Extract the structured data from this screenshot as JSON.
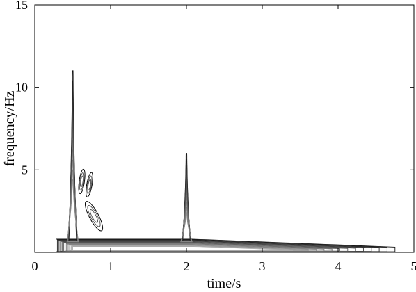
{
  "chart_data": {
    "type": "contour",
    "xlabel": "time/s",
    "ylabel": "frequency/Hz",
    "xlim": [
      0,
      5
    ],
    "ylim": [
      0,
      15
    ],
    "xticks": [
      "0",
      "1",
      "2",
      "3",
      "4",
      "5"
    ],
    "yticks": [
      "5",
      "10",
      "15"
    ],
    "grid": false,
    "features": [
      {
        "kind": "spike",
        "x": 0.5,
        "peak_y": 11.0
      },
      {
        "kind": "spike",
        "x": 2.0,
        "peak_y": 6.0
      },
      {
        "kind": "blob",
        "x_range": [
          0.58,
          0.92
        ],
        "y_range": [
          1.3,
          5.0
        ]
      },
      {
        "kind": "band",
        "x_range": [
          0.28,
          4.75
        ],
        "y_range": [
          0,
          0.8
        ]
      }
    ],
    "line_color": "#000000"
  }
}
